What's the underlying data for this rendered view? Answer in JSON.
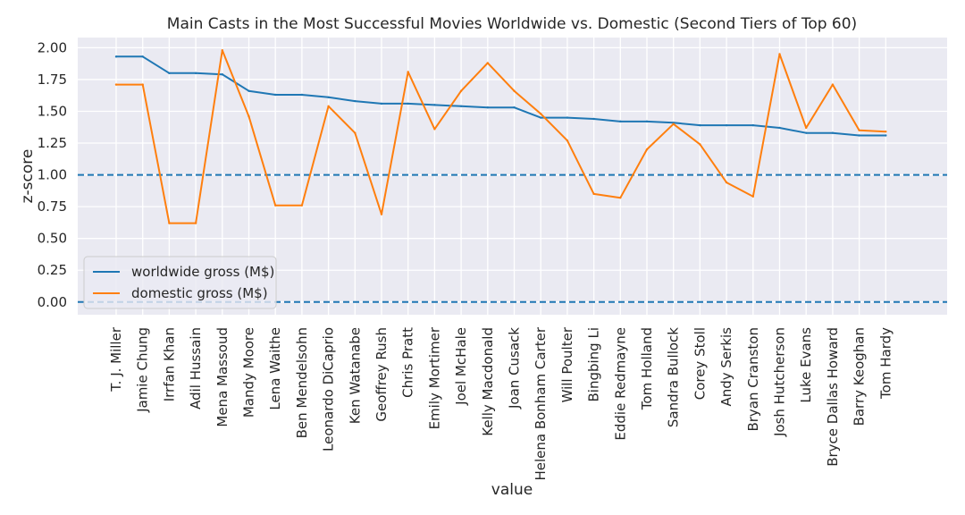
{
  "chart_data": {
    "type": "line",
    "title": "Main Casts in the Most Successful Movies Worldwide vs. Domestic (Second Tiers of Top 60)",
    "xlabel": "value",
    "ylabel": "z-score",
    "ylim": [
      -0.1,
      2.08
    ],
    "yticks": [
      "0.00",
      "0.25",
      "0.50",
      "0.75",
      "1.00",
      "1.25",
      "1.50",
      "1.75",
      "2.00"
    ],
    "grid": true,
    "legend_position": "lower-left",
    "reference_lines": [
      1.0,
      0.0
    ],
    "categories": [
      "T. J. Miller",
      "Jamie Chung",
      "Irrfan Khan",
      "Adil Hussain",
      "Mena Massoud",
      "Mandy Moore",
      "Lena Waithe",
      "Ben Mendelsohn",
      "Leonardo DiCaprio",
      "Ken Watanabe",
      "Geoffrey Rush",
      "Chris Pratt",
      "Emily Mortimer",
      "Joel McHale",
      "Kelly Macdonald",
      "Joan Cusack",
      "Helena Bonham Carter",
      "Will Poulter",
      "Bingbing Li",
      "Eddie Redmayne",
      "Tom Holland",
      "Sandra Bullock",
      "Corey Stoll",
      "Andy Serkis",
      "Bryan Cranston",
      "Josh Hutcherson",
      "Luke Evans",
      "Bryce Dallas Howard",
      "Barry Keoghan",
      "Tom Hardy"
    ],
    "series": [
      {
        "name": "worldwide gross (M$)",
        "color": "#1f77b4",
        "values": [
          1.93,
          1.93,
          1.8,
          1.8,
          1.79,
          1.66,
          1.63,
          1.63,
          1.61,
          1.58,
          1.56,
          1.56,
          1.55,
          1.54,
          1.53,
          1.53,
          1.45,
          1.45,
          1.44,
          1.42,
          1.42,
          1.41,
          1.39,
          1.39,
          1.39,
          1.37,
          1.33,
          1.33,
          1.31,
          1.31
        ]
      },
      {
        "name": "domestic gross (M$)",
        "color": "#ff7f0e",
        "values": [
          1.71,
          1.71,
          0.62,
          0.62,
          1.98,
          1.46,
          0.76,
          0.76,
          1.54,
          1.33,
          0.69,
          1.81,
          1.36,
          1.66,
          1.88,
          1.66,
          1.48,
          1.27,
          0.85,
          0.82,
          1.2,
          1.4,
          1.24,
          0.94,
          0.83,
          1.95,
          1.37,
          1.71,
          1.35,
          1.34
        ]
      }
    ]
  },
  "colors": {
    "plot_background": "#eaeaf2",
    "grid": "#ffffff",
    "reference_line": "#1f77b4"
  }
}
